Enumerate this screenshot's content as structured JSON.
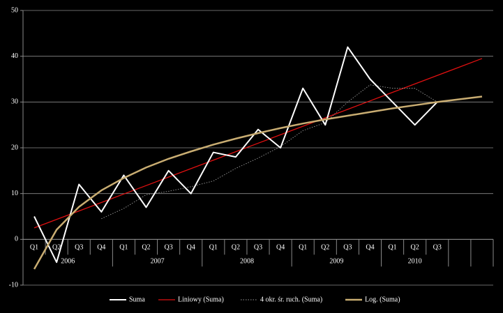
{
  "chart_data": {
    "type": "line",
    "categories": [
      "Q1",
      "Q2",
      "Q3",
      "Q4",
      "Q1",
      "Q2",
      "Q3",
      "Q4",
      "Q1",
      "Q2",
      "Q3",
      "Q4",
      "Q1",
      "Q2",
      "Q3",
      "Q4",
      "Q1",
      "Q2",
      "Q3",
      null,
      null
    ],
    "x_groups": [
      {
        "label": "2006",
        "count": 4
      },
      {
        "label": "2007",
        "count": 4
      },
      {
        "label": "2008",
        "count": 4
      },
      {
        "label": "2009",
        "count": 4
      },
      {
        "label": "2010",
        "count": 3
      }
    ],
    "ylim": [
      -10,
      50
    ],
    "yticks": [
      -10,
      0,
      10,
      20,
      30,
      40,
      50
    ],
    "grid": true,
    "legend": "bottom",
    "series": [
      {
        "name": "Suma",
        "color": "#ffffff",
        "style": "solid",
        "width": 2,
        "values": [
          5,
          -5,
          12,
          6,
          14,
          7,
          15,
          10,
          19,
          18,
          24,
          20,
          33,
          25,
          42,
          35,
          30,
          25,
          30,
          null,
          null
        ]
      },
      {
        "name": "Liniowy (Suma)",
        "color": "#e01010",
        "style": "solid",
        "width": 1.3,
        "values": [
          2.5,
          4.35,
          6.2,
          8.05,
          9.9,
          11.75,
          13.6,
          15.45,
          17.3,
          19.15,
          21,
          22.85,
          24.7,
          26.55,
          28.4,
          30.25,
          32.1,
          33.95,
          35.8,
          37.65,
          39.5
        ]
      },
      {
        "name": "4 okr. śr. ruch. (Suma)",
        "color": "#9a9a9a",
        "style": "dotted",
        "width": 0.9,
        "values": [
          null,
          null,
          null,
          4.5,
          6.75,
          9.75,
          10.5,
          11.5,
          12.75,
          15.5,
          17.75,
          20.25,
          23.75,
          25.5,
          30,
          33.75,
          33,
          33,
          30,
          null,
          null
        ]
      },
      {
        "name": "Log. (Suma)",
        "color": "#c9ad72",
        "style": "solid",
        "width": 2.5,
        "values": [
          -6.5,
          2.1,
          7.1,
          10.7,
          13.4,
          15.7,
          17.6,
          19.2,
          20.7,
          22.0,
          23.2,
          24.3,
          25.3,
          26.2,
          27.0,
          27.8,
          28.6,
          29.3,
          30.0,
          30.6,
          31.2
        ]
      }
    ]
  }
}
